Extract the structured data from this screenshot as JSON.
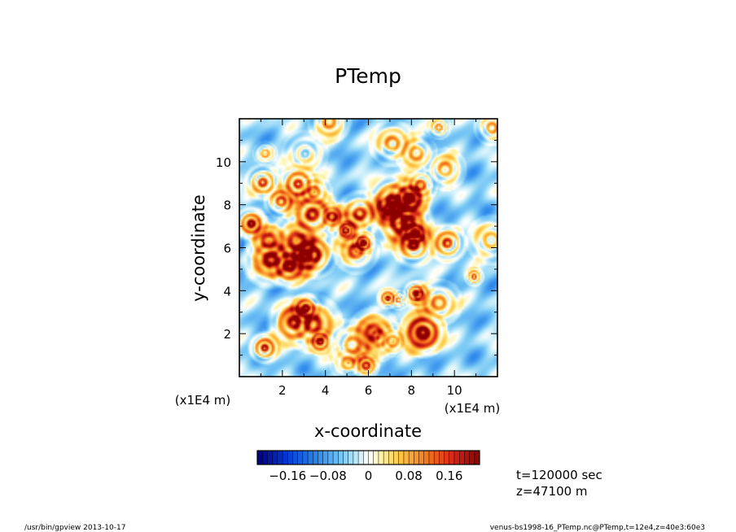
{
  "chart_data": {
    "type": "heatmap",
    "title": "PTemp",
    "xlabel": "x-coordinate",
    "ylabel": "y-coordinate",
    "x_unit": "(x1E4 m)",
    "y_unit": "(x1E4 m)",
    "xlim": [
      0,
      12
    ],
    "ylim": [
      0,
      12
    ],
    "x_ticks": [
      "2",
      "4",
      "6",
      "8",
      "10"
    ],
    "y_ticks": [
      "2",
      "4",
      "6",
      "8",
      "10"
    ],
    "colorbar": {
      "ticks": [
        "−0.16",
        "−0.08",
        "0",
        "0.08",
        "0.16"
      ],
      "tick_values": [
        -0.16,
        -0.08,
        0,
        0.08,
        0.16
      ],
      "range": [
        -0.22,
        0.22
      ],
      "levels": 44
    },
    "info": {
      "time": "t=120000 sec",
      "z": "z=47100 m"
    }
  },
  "footer": {
    "left": "/usr/bin/gpview   2013-10-17",
    "right": "venus-bs1998-16_PTemp.nc@PTemp,t=12e4,z=40e3:60e3"
  }
}
